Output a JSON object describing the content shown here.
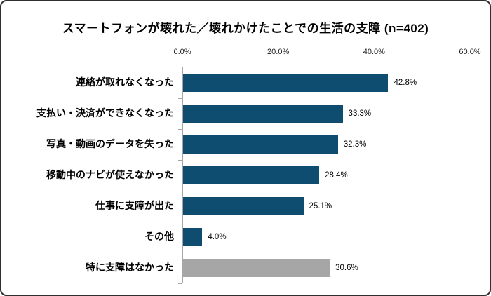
{
  "frame": {
    "background": "#ffffff",
    "border_color": "#2f2f2f"
  },
  "chart_data": {
    "type": "bar",
    "orientation": "horizontal",
    "title": "スマートフォンが壊れた／壊れかけたことでの生活の支障 (n=402)",
    "sample_size": 402,
    "categories": [
      "連絡が取れなくなった",
      "支払い・決済ができなくなった",
      "写真・動画のデータを失った",
      "移動中のナビが使えなかった",
      "仕事に支障が出た",
      "その他",
      "特に支障はなかった"
    ],
    "values": [
      42.8,
      33.3,
      32.3,
      28.4,
      25.1,
      4.0,
      30.6
    ],
    "value_labels": [
      "42.8%",
      "33.3%",
      "32.3%",
      "28.4%",
      "25.1%",
      "4.0%",
      "30.6%"
    ],
    "bar_colors": [
      "#0e4d6f",
      "#0e4d6f",
      "#0e4d6f",
      "#0e4d6f",
      "#0e4d6f",
      "#0e4d6f",
      "#a6a6a6"
    ],
    "primary_bar_color": "#0e4d6f",
    "neutral_bar_color": "#a6a6a6",
    "axis_color": "#a6a6a6",
    "xlabel": "",
    "ylabel": "",
    "xlim": [
      0,
      60
    ],
    "x_ticks": [
      "0.0%",
      "20.0%",
      "40.0%",
      "60.0%"
    ],
    "grid": false,
    "legend": false
  }
}
